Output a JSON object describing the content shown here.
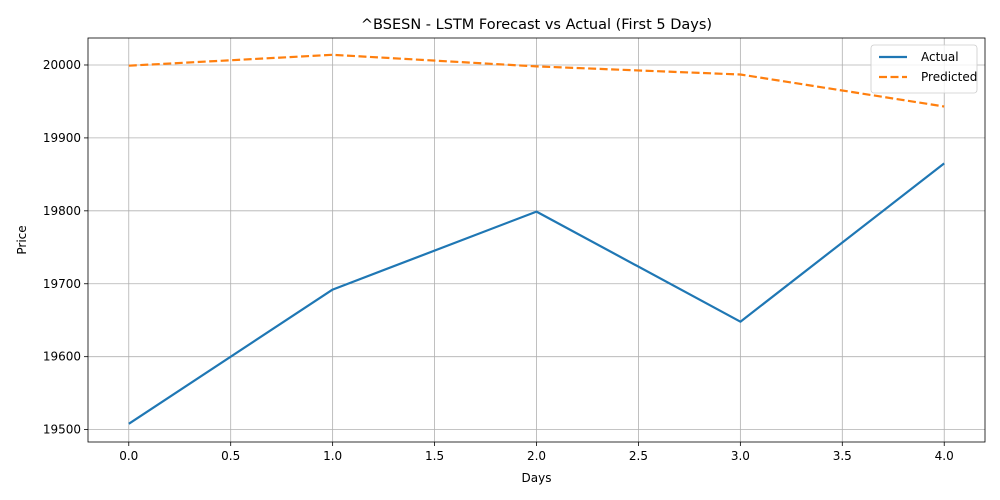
{
  "chart_data": {
    "type": "line",
    "title": "^BSESN - LSTM Forecast vs Actual (First 5 Days)",
    "xlabel": "Days",
    "ylabel": "Price",
    "x": [
      0,
      1,
      2,
      3,
      4
    ],
    "xticks": [
      "0.0",
      "0.5",
      "1.0",
      "1.5",
      "2.0",
      "2.5",
      "3.0",
      "3.5",
      "4.0"
    ],
    "yticks": [
      "19500",
      "19600",
      "19700",
      "19800",
      "19900",
      "20000"
    ],
    "xlim": [
      -0.2,
      4.2
    ],
    "ylim": [
      19483,
      20037
    ],
    "grid": true,
    "legend_position": "top-right",
    "series": [
      {
        "name": "Actual",
        "values": [
          19508,
          19692,
          19799,
          19648,
          19865
        ],
        "color": "#1f77b4",
        "style": "solid"
      },
      {
        "name": "Predicted",
        "values": [
          19999,
          20014,
          19998,
          19987,
          19943
        ],
        "color": "#ff7f0e",
        "style": "dashed"
      }
    ]
  }
}
